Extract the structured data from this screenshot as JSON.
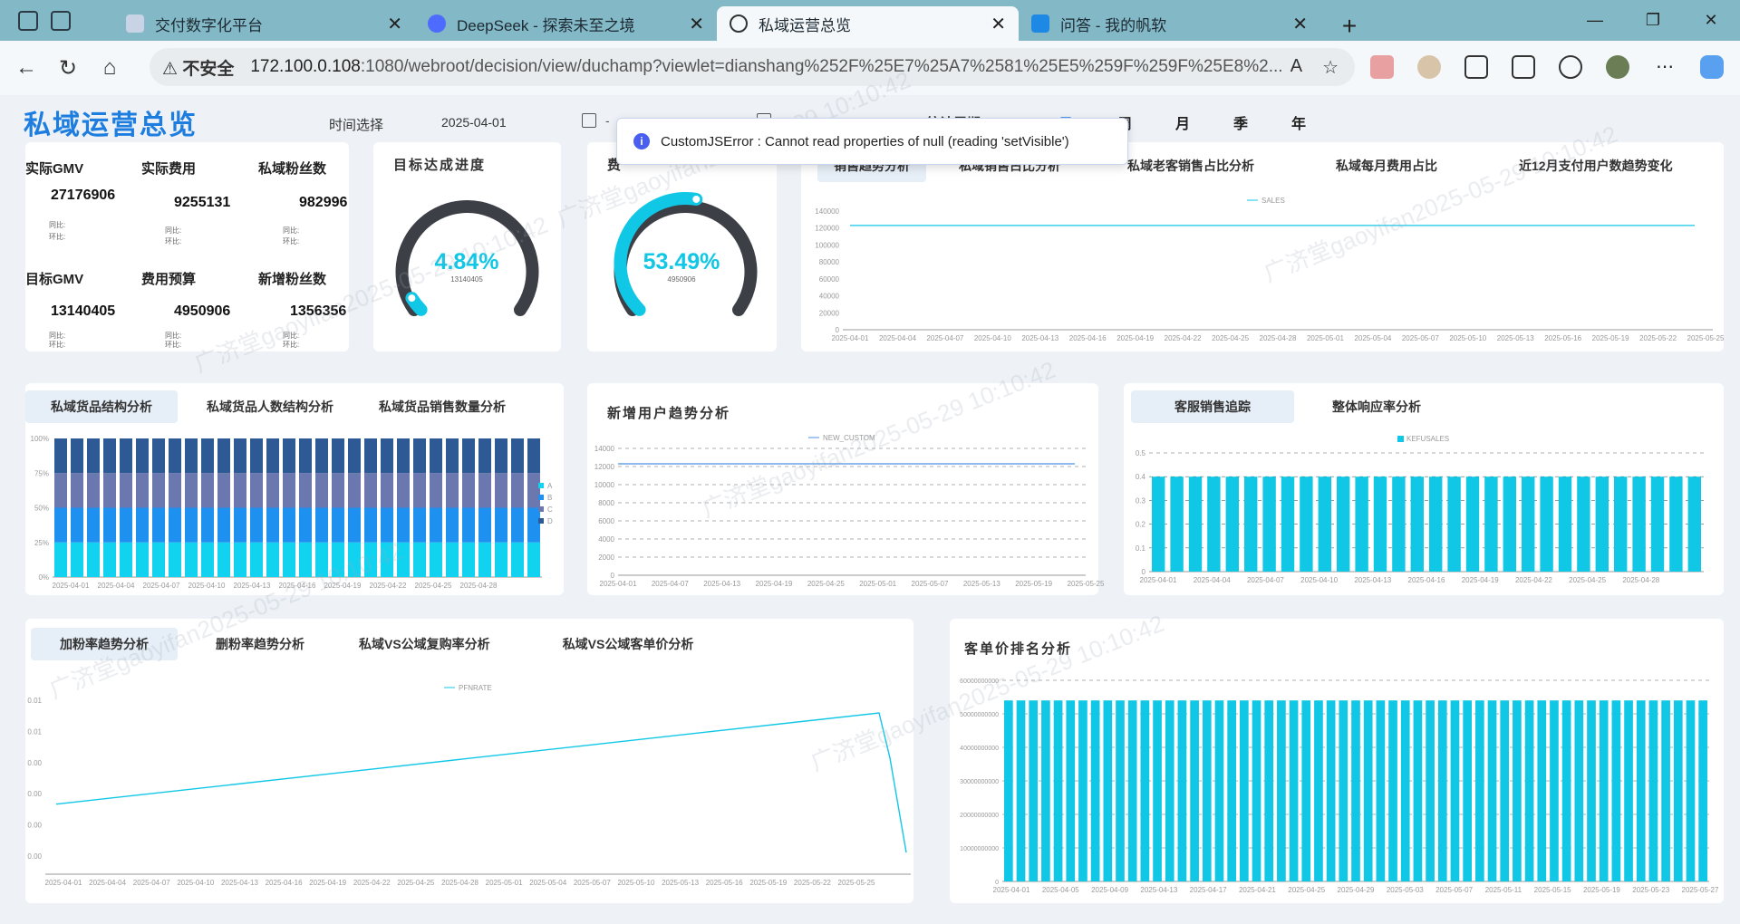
{
  "browser": {
    "tabs": [
      {
        "title": "交付数字化平台",
        "icon_color": "#9aa8c4"
      },
      {
        "title": "DeepSeek - 探索未至之境",
        "icon_color": "#4d6bfe"
      },
      {
        "title": "私域运营总览",
        "icon_color": "#333333"
      },
      {
        "title": "问答 - 我的帆软",
        "icon_color": "#1e88e5"
      }
    ],
    "url": {
      "security": "不安全",
      "host": "172.100.0.108",
      "path": ":1080/webroot/decision/view/duchamp?viewlet=dianshang%252F%25E7%25A7%2581%25E5%259F%259F%25E8%2..."
    }
  },
  "dashboard": {
    "title": "私域运营总览",
    "time_filter_label": "时间选择",
    "date_start": "2025-04-01",
    "period_label": "统计周期:",
    "periods": [
      "日",
      "周",
      "月",
      "季",
      "年"
    ],
    "selected_period": "日",
    "accent": "#1e7ee0",
    "chart_color": "#11c7e6"
  },
  "error_toast": {
    "message": "CustomJSError : Cannot read properties of null (reading 'setVisible')"
  },
  "kpi": {
    "items": [
      {
        "label": "实际GMV",
        "value": "27176906",
        "sub1": "同比:",
        "sub2": "环比:"
      },
      {
        "label": "实际费用",
        "value": "9255131",
        "sub1": "同比:",
        "sub2": "环比:"
      },
      {
        "label": "私域粉丝数",
        "value": "982996",
        "sub1": "同比:",
        "sub2": "环比:"
      },
      {
        "label": "目标GMV",
        "value": "13140405",
        "sub1": "同比:",
        "sub2": "环比:"
      },
      {
        "label": "费用预算",
        "value": "4950906",
        "sub1": "同比:",
        "sub2": "环比:"
      },
      {
        "label": "新增粉丝数",
        "value": "1356356",
        "sub1": "同比:",
        "sub2": "环比:"
      }
    ]
  },
  "gauge1": {
    "title": "目标达成进度",
    "percent": "4.84%",
    "fraction": 0.0484,
    "sub": "13140405"
  },
  "gauge2": {
    "title": "费",
    "percent": "53.49%",
    "fraction": 0.5349,
    "sub": "4950906"
  },
  "top_tabs": [
    "销售趋势分析",
    "私域销售占比分析",
    "私域老客销售占比分析",
    "私域每月费用占比",
    "近12月支付用户数趋势变化"
  ],
  "charts": {
    "sales": {
      "type": "line",
      "legend": "SALES",
      "x": [
        "2025-04-01",
        "2025-04-04",
        "2025-04-07",
        "2025-04-10",
        "2025-04-13",
        "2025-04-16",
        "2025-04-19",
        "2025-04-22",
        "2025-04-25",
        "2025-04-28",
        "2025-05-01",
        "2025-05-04",
        "2025-05-07",
        "2025-05-10",
        "2025-05-13",
        "2025-05-16",
        "2025-05-19",
        "2025-05-22",
        "2025-05-25"
      ],
      "yticks": [
        "0",
        "20000",
        "40000",
        "60000",
        "80000",
        "100000",
        "120000",
        "140000"
      ],
      "ylim": [
        0,
        140000
      ],
      "value": 123000
    },
    "goods": {
      "tabs": [
        "私域货品结构分析",
        "私域货品人数结构分析",
        "私域货品销售数量分析"
      ],
      "type": "stacked-bar",
      "legend": [
        "A",
        "B",
        "C",
        "D"
      ],
      "colors": [
        "#11d3f0",
        "#1e90f0",
        "#6b78b0",
        "#2d5a95"
      ],
      "shares": [
        0.25,
        0.25,
        0.25,
        0.25
      ],
      "bars": 30,
      "yticks": [
        "0%",
        "25%",
        "50%",
        "75%",
        "100%"
      ],
      "x": [
        "2025-04-01",
        "2025-04-04",
        "2025-04-07",
        "2025-04-10",
        "2025-04-13",
        "2025-04-16",
        "2025-04-19",
        "2025-04-22",
        "2025-04-25",
        "2025-04-28"
      ]
    },
    "newusers": {
      "title": "新增用户趋势分析",
      "type": "line",
      "legend": "NEW_CUSTOM",
      "yticks": [
        "0",
        "2000",
        "4000",
        "6000",
        "8000",
        "10000",
        "12000",
        "14000"
      ],
      "ylim": [
        0,
        14000
      ],
      "value": 12300,
      "x": [
        "2025-04-01",
        "2025-04-07",
        "2025-04-13",
        "2025-04-19",
        "2025-04-25",
        "2025-05-01",
        "2025-05-07",
        "2025-05-13",
        "2025-05-19",
        "2025-05-25"
      ]
    },
    "service": {
      "tabs": [
        "客服销售追踪",
        "整体响应率分析"
      ],
      "type": "bar",
      "legend": "KEFUSALES",
      "yticks": [
        "0",
        "0.1",
        "0.2",
        "0.3",
        "0.4",
        "0.5"
      ],
      "ylim": [
        0,
        0.5
      ],
      "value": 0.4,
      "bars": 30,
      "x": [
        "2025-04-01",
        "2025-04-04",
        "2025-04-07",
        "2025-04-10",
        "2025-04-13",
        "2025-04-16",
        "2025-04-19",
        "2025-04-22",
        "2025-04-25",
        "2025-04-28"
      ]
    },
    "fans": {
      "tabs": [
        "加粉率趋势分析",
        "删粉率趋势分析",
        "私域VS公域复购率分析",
        "私域VS公域客单价分析"
      ],
      "type": "line",
      "legend": "PFNRATE",
      "yticks": [
        "0.00",
        "0.00",
        "0.00",
        "0.00",
        "0.01",
        "0.01"
      ],
      "start": 0.0045,
      "peak": 0.0124,
      "end": 0.0003,
      "x": [
        "2025-04-01",
        "2025-04-04",
        "2025-04-07",
        "2025-04-10",
        "2025-04-13",
        "2025-04-16",
        "2025-04-19",
        "2025-04-22",
        "2025-04-25",
        "2025-04-28",
        "2025-05-01",
        "2025-05-04",
        "2025-05-07",
        "2025-05-10",
        "2025-05-13",
        "2025-05-16",
        "2025-05-19",
        "2025-05-22",
        "2025-05-25"
      ]
    },
    "unitprice": {
      "title": "客单价排名分析",
      "type": "bar",
      "yticks": [
        "0",
        "10000000000",
        "20000000000",
        "30000000000",
        "40000000000",
        "50000000000",
        "60000000000"
      ],
      "ylim": [
        0,
        60000000000
      ],
      "value": 54000000000,
      "bars": 57,
      "x": [
        "2025-04-01",
        "2025-04-05",
        "2025-04-09",
        "2025-04-13",
        "2025-04-17",
        "2025-04-21",
        "2025-04-25",
        "2025-04-29",
        "2025-05-03",
        "2025-05-07",
        "2025-05-11",
        "2025-05-15",
        "2025-05-19",
        "2025-05-23",
        "2025-05-27"
      ]
    }
  }
}
